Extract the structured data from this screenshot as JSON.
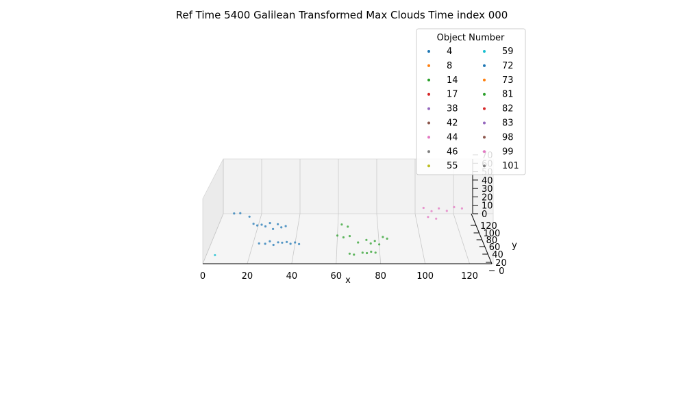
{
  "chart_data": {
    "type": "scatter",
    "title": "Ref Time 5400 Galilean Transformed Max Clouds Time index 000",
    "xlabel": "x",
    "ylabel": "y",
    "zlabel": "",
    "xlim": [
      0,
      130
    ],
    "ylim": [
      20,
      125
    ],
    "zlim": [
      0,
      70
    ],
    "x_ticks": [
      "0",
      "20",
      "40",
      "60",
      "80",
      "100",
      "120"
    ],
    "y_ticks": [
      "0",
      "20",
      "40",
      "60",
      "80",
      "100",
      "120"
    ],
    "z_ticks": [
      "0",
      "10",
      "20",
      "30",
      "40",
      "50",
      "60",
      "70"
    ],
    "legend": {
      "title": "Object Number",
      "placement": "top-right",
      "columns": 2
    },
    "series": [
      {
        "name": "4",
        "color": "#1f77b4",
        "points": [
          [
            7,
            110,
            10
          ],
          [
            10,
            112,
            9
          ],
          [
            15,
            108,
            7
          ],
          [
            18,
            95,
            6
          ],
          [
            20,
            93,
            5
          ],
          [
            22,
            96,
            4
          ],
          [
            24,
            94,
            3
          ],
          [
            26,
            98,
            5
          ],
          [
            28,
            90,
            2
          ],
          [
            30,
            97,
            4
          ],
          [
            32,
            92,
            3
          ],
          [
            34,
            96,
            2
          ],
          [
            23,
            60,
            2
          ],
          [
            26,
            58,
            3
          ],
          [
            28,
            62,
            4
          ],
          [
            30,
            57,
            2
          ],
          [
            32,
            61,
            3
          ],
          [
            34,
            59,
            4
          ],
          [
            36,
            63,
            2
          ],
          [
            38,
            58,
            3
          ],
          [
            40,
            62,
            2
          ],
          [
            42,
            60,
            1
          ]
        ]
      },
      {
        "name": "8",
        "color": "#ff7f0e",
        "points": []
      },
      {
        "name": "14",
        "color": "#2ca02c",
        "points": [
          [
            62,
            95,
            5
          ],
          [
            65,
            92,
            4
          ],
          [
            60,
            75,
            3
          ],
          [
            63,
            70,
            4
          ],
          [
            66,
            74,
            3
          ],
          [
            70,
            62,
            2
          ],
          [
            74,
            66,
            3
          ],
          [
            76,
            60,
            2
          ],
          [
            78,
            64,
            3
          ],
          [
            80,
            58,
            2
          ],
          [
            72,
            42,
            1
          ],
          [
            74,
            40,
            2
          ],
          [
            76,
            44,
            1
          ],
          [
            78,
            41,
            2
          ],
          [
            68,
            38,
            1
          ],
          [
            66,
            40,
            1
          ],
          [
            82,
            72,
            3
          ],
          [
            84,
            70,
            2
          ]
        ]
      },
      {
        "name": "17",
        "color": "#d62728",
        "points": []
      },
      {
        "name": "38",
        "color": "#9467bd",
        "points": []
      },
      {
        "name": "42",
        "color": "#8c564b",
        "points": []
      },
      {
        "name": "44",
        "color": "#e377c2",
        "points": [
          [
            104,
            118,
            12
          ],
          [
            108,
            116,
            9
          ],
          [
            112,
            120,
            10
          ],
          [
            116,
            118,
            8
          ],
          [
            106,
            112,
            4
          ],
          [
            110,
            110,
            3
          ],
          [
            120,
            121,
            11
          ],
          [
            124,
            120,
            10
          ]
        ]
      },
      {
        "name": "46",
        "color": "#7f7f7f",
        "points": []
      },
      {
        "name": "55",
        "color": "#bcbd22",
        "points": []
      },
      {
        "name": "59",
        "color": "#17becf",
        "points": [
          [
            4,
            38,
            0
          ]
        ]
      },
      {
        "name": "72",
        "color": "#1f77b4",
        "points": []
      },
      {
        "name": "73",
        "color": "#ff7f0e",
        "points": []
      },
      {
        "name": "81",
        "color": "#2ca02c",
        "points": []
      },
      {
        "name": "82",
        "color": "#d62728",
        "points": []
      },
      {
        "name": "83",
        "color": "#9467bd",
        "points": []
      },
      {
        "name": "98",
        "color": "#8c564b",
        "points": []
      },
      {
        "name": "99",
        "color": "#e377c2",
        "points": []
      },
      {
        "name": "101",
        "color": "#7f7f7f",
        "points": []
      }
    ]
  }
}
